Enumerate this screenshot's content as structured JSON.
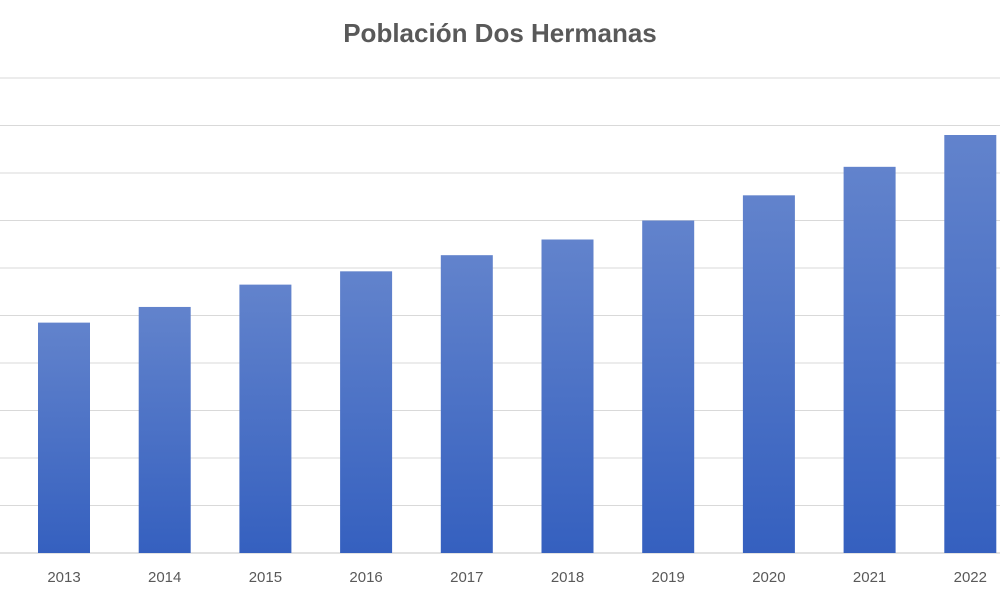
{
  "chart_data": {
    "type": "bar",
    "title": "Población Dos Hermanas",
    "categories": [
      "2013",
      "2014",
      "2015",
      "2016",
      "2017",
      "2018",
      "2019",
      "2020",
      "2021",
      "2022"
    ],
    "values": [
      4.85,
      5.18,
      5.65,
      5.93,
      6.27,
      6.6,
      7.0,
      7.53,
      8.13,
      8.8
    ],
    "ylim": [
      0,
      10
    ],
    "grid": true,
    "legend": "none",
    "colors": {
      "bar_top": "#6283cc",
      "bar_bottom": "#3560bf",
      "grid": "#d9d9d9",
      "text": "#595959"
    }
  }
}
